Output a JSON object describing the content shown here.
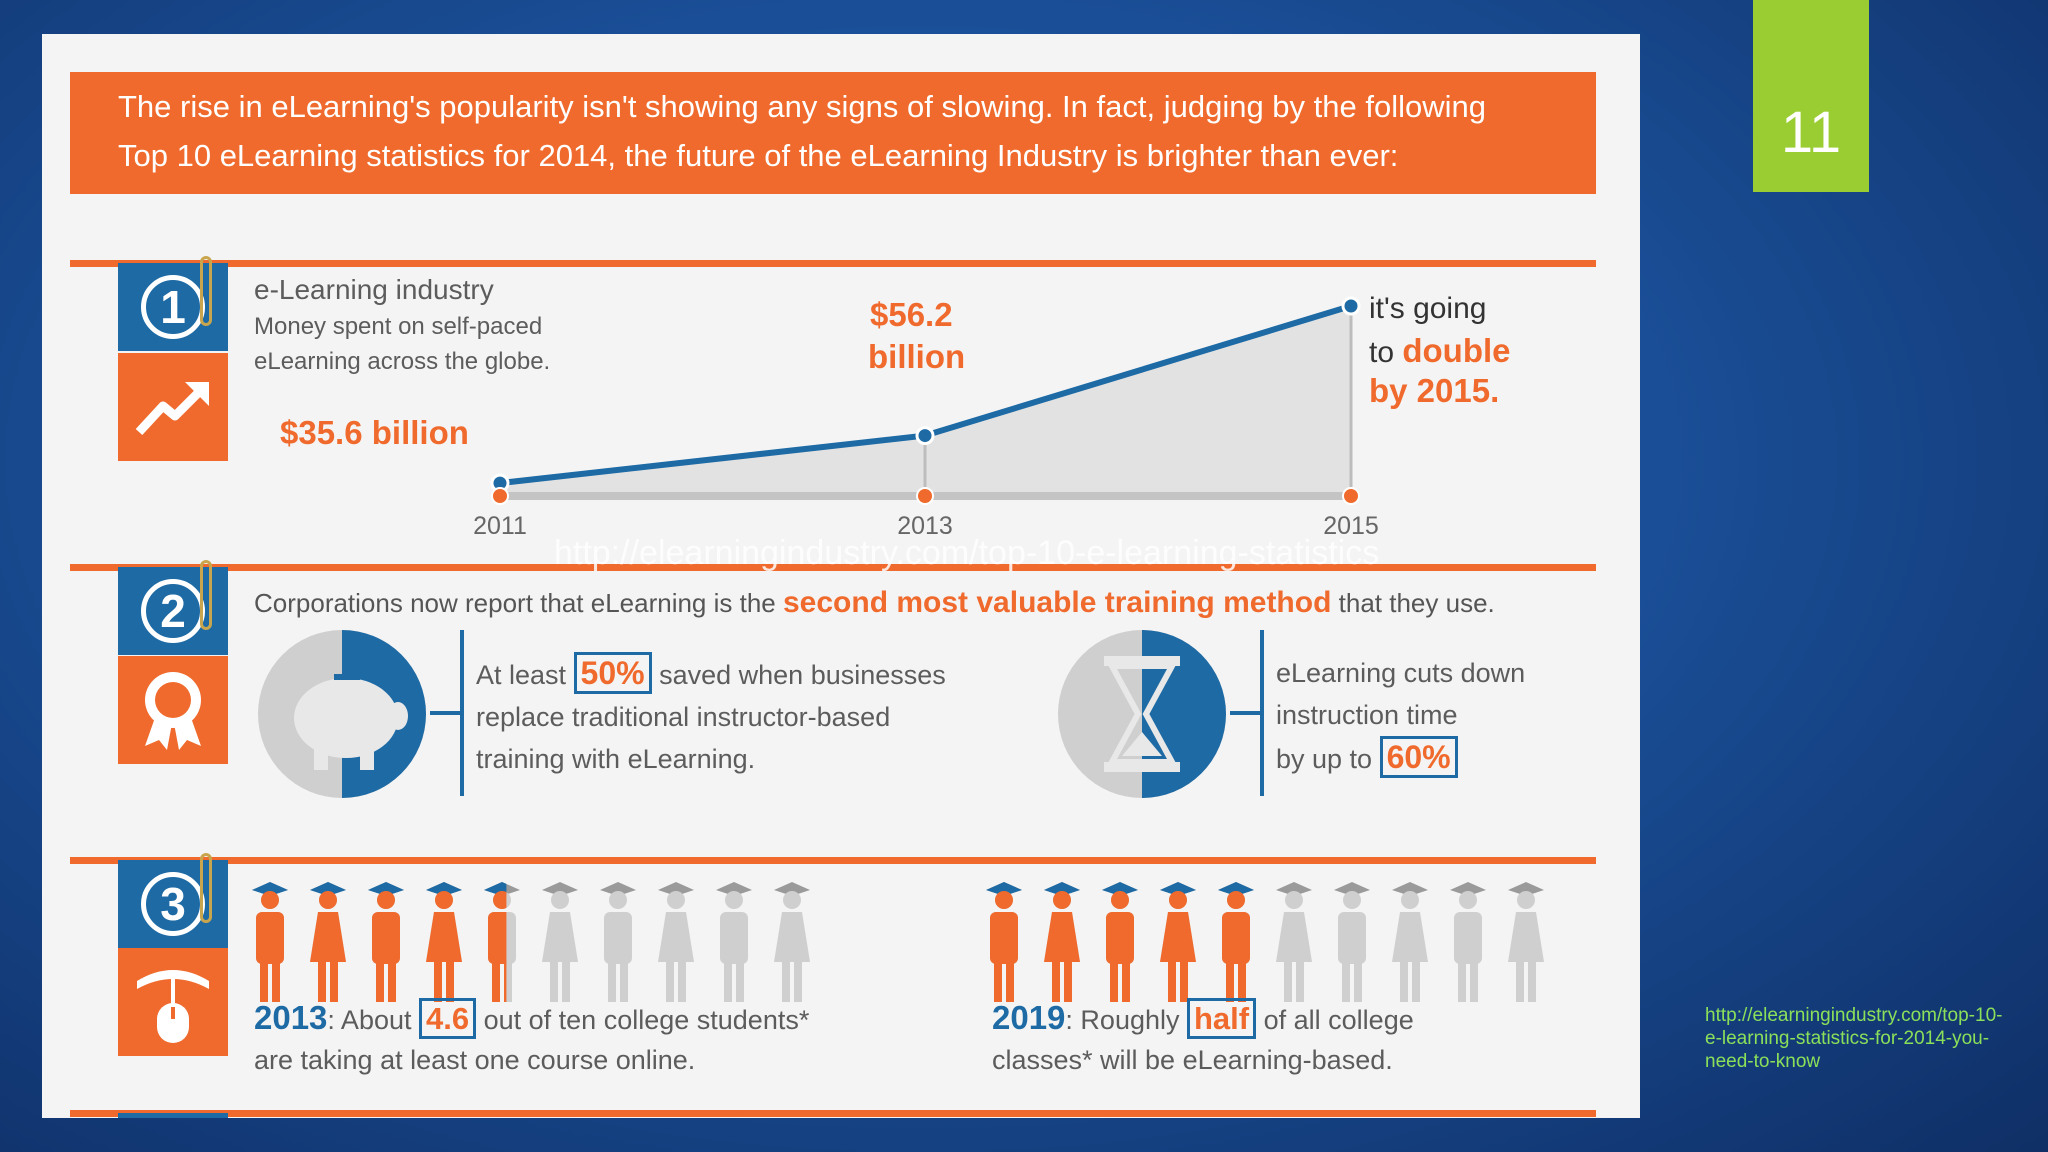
{
  "slide": {
    "number": "11",
    "source_link": "http://elearningindustry.com/top-10-e-learning-statistics-for-2014-you-need-to-know",
    "overlay_text": "http://elearningindustry.com/top-10-e-learning-statistics"
  },
  "intro": {
    "line1": "The rise in eLearning's popularity isn't showing any signs of slowing. In fact, judging by the following",
    "line2": "Top 10 eLearning statistics for 2014, the future of the eLearning Industry is brighter than ever:"
  },
  "stat1": {
    "number": "1",
    "title": "e-Learning industry",
    "subtitle1": "Money spent on self-paced",
    "subtitle2": "eLearning across the globe.",
    "label_2011": "$35.6 billion",
    "label_2013_a": "$56.2",
    "label_2013_b": "billion",
    "forecast1": "it's going",
    "forecast2a": "to ",
    "forecast2b": "double",
    "forecast3": "by 2015."
  },
  "chart_data": {
    "type": "line",
    "x": [
      "2011",
      "2013",
      "2015"
    ],
    "series": [
      {
        "values": [
          35.6,
          56.2,
          112.4
        ]
      }
    ],
    "ylabel": "",
    "xlabel": ""
  },
  "stat2": {
    "number": "2",
    "headline_a": "Corporations now report that eLearning is the ",
    "headline_b": "second most valuable training method",
    "headline_c": " that they use.",
    "left_a": "At least ",
    "left_pct": "50%",
    "left_b": " saved when businesses",
    "left_c": "replace traditional instructor-based",
    "left_d": "training with eLearning.",
    "right_a": "eLearning cuts down",
    "right_b": "instruction time",
    "right_c": "by up to ",
    "right_pct": "60%"
  },
  "stat3": {
    "number": "3",
    "left_year": "2013",
    "left_a": ": About ",
    "left_val": "4.6",
    "left_b": " out of ten college students*",
    "left_c": "are taking at least one course online.",
    "left_fraction": 0.46,
    "right_year": "2019",
    "right_a": ": Roughly ",
    "right_val": "half",
    "right_b": " of all college",
    "right_c": "classes* will be eLearning-based.",
    "right_fraction": 0.5
  },
  "colors": {
    "orange": "#ef6a2c",
    "blue": "#1d6aa5",
    "slide_number_bg": "#9acd32",
    "link": "#8be05a"
  }
}
